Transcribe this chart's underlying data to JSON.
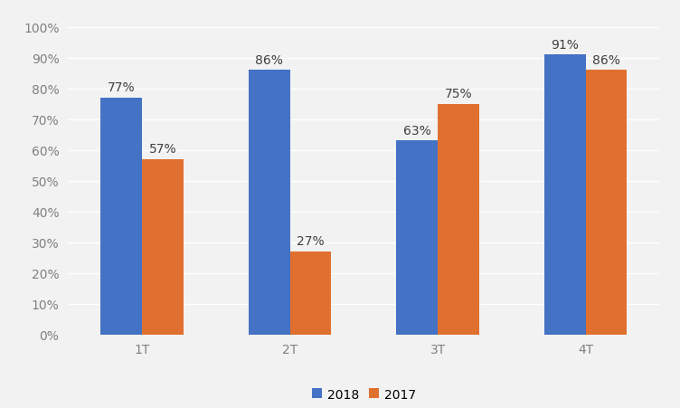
{
  "categories": [
    "1T",
    "2T",
    "3T",
    "4T"
  ],
  "values_2018": [
    0.77,
    0.86,
    0.63,
    0.91
  ],
  "values_2017": [
    0.57,
    0.27,
    0.75,
    0.86
  ],
  "labels_2018": [
    "77%",
    "86%",
    "63%",
    "91%"
  ],
  "labels_2017": [
    "57%",
    "27%",
    "75%",
    "86%"
  ],
  "color_2018": "#4472C4",
  "color_2017": "#E07030",
  "legend_2018": "2018",
  "legend_2017": "2017",
  "ylim": [
    0,
    1.05
  ],
  "yticks": [
    0.0,
    0.1,
    0.2,
    0.3,
    0.4,
    0.5,
    0.6,
    0.7,
    0.8,
    0.9,
    1.0
  ],
  "background_color": "#F2F2F2",
  "bar_width": 0.28,
  "label_fontsize": 10,
  "tick_fontsize": 10,
  "legend_fontsize": 10,
  "grid_color": "#FFFFFF",
  "tick_color": "#808080"
}
